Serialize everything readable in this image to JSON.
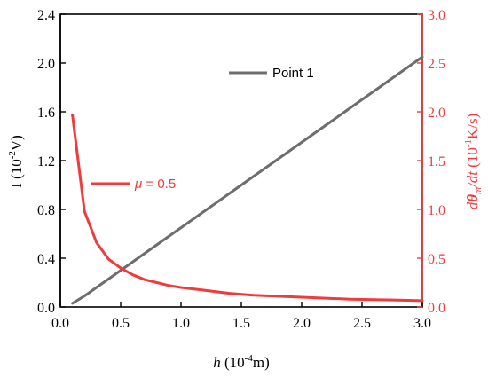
{
  "chart_data": {
    "type": "line",
    "x": [
      0.1,
      0.2,
      0.3,
      0.4,
      0.5,
      0.6,
      0.7,
      0.8,
      0.9,
      1.0,
      1.2,
      1.4,
      1.6,
      1.8,
      2.0,
      2.2,
      2.4,
      2.6,
      2.8,
      3.0
    ],
    "xlim": [
      0.0,
      3.0
    ],
    "xticks": [
      0.0,
      0.5,
      1.0,
      1.5,
      2.0,
      2.5,
      3.0
    ],
    "xtick_labels": [
      "0.0",
      "0.5",
      "1.0",
      "1.5",
      "2.0",
      "2.5",
      "3.0"
    ],
    "xlabel": {
      "italic": "h",
      "text": " (10",
      "sup": "-4",
      "tail": "m)"
    },
    "y_left": {
      "lim": [
        0.0,
        2.4
      ],
      "ticks": [
        0.0,
        0.4,
        0.8,
        1.2,
        1.6,
        2.0,
        2.4
      ],
      "tick_labels": [
        "0.0",
        "0.4",
        "0.8",
        "1.2",
        "1.6",
        "2.0",
        "2.4"
      ],
      "label": {
        "text": "I (10",
        "sup": "-2",
        "tail": "V)"
      },
      "color": "#000000"
    },
    "y_right": {
      "lim": [
        0.0,
        3.0
      ],
      "ticks": [
        0.0,
        0.5,
        1.0,
        1.5,
        2.0,
        2.5,
        3.0
      ],
      "tick_labels": [
        "0.0",
        "0.5",
        "1.0",
        "1.5",
        "2.0",
        "2.5",
        "3.0"
      ],
      "label": {
        "d1": "d",
        "theta": "θ",
        "sub": "m",
        "d2": "/dt",
        "text": " (10",
        "sup": "-1",
        "tail": "K/s)"
      },
      "color": "#ef3b3b"
    },
    "series": [
      {
        "name": "Point 1",
        "axis": "left",
        "color": "#6d6d6d",
        "values": [
          0.03,
          0.09,
          0.16,
          0.23,
          0.3,
          0.37,
          0.44,
          0.51,
          0.58,
          0.65,
          0.79,
          0.93,
          1.07,
          1.21,
          1.35,
          1.49,
          1.63,
          1.77,
          1.91,
          2.05
        ]
      },
      {
        "name": "μ = 0.5",
        "name_italic": "μ",
        "name_rest": " = 0.5",
        "axis": "right",
        "color": "#ef3b3b",
        "values": [
          1.97,
          0.98,
          0.66,
          0.49,
          0.4,
          0.33,
          0.28,
          0.25,
          0.22,
          0.2,
          0.17,
          0.14,
          0.12,
          0.11,
          0.1,
          0.09,
          0.08,
          0.075,
          0.07,
          0.065
        ]
      }
    ],
    "grid": false,
    "legend": "inside, separate labels per series"
  }
}
